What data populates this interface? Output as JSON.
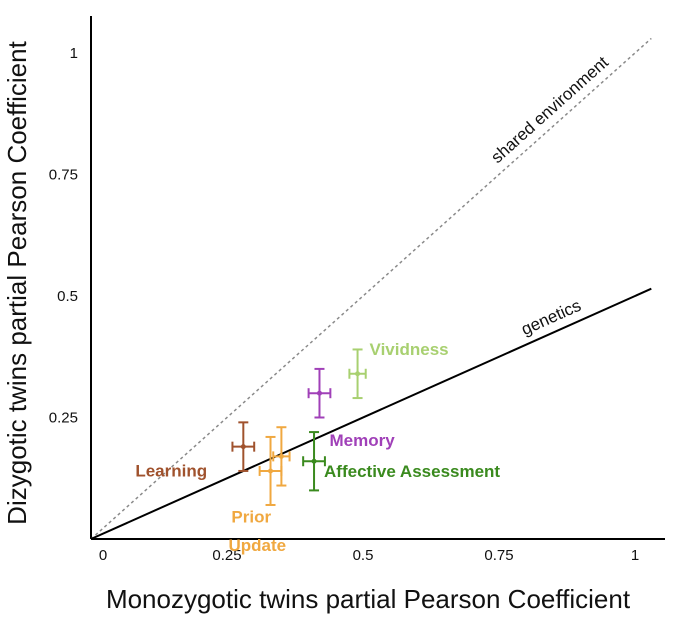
{
  "chart_data": {
    "type": "scatter",
    "xlabel": "Monozygotic twins partial Pearson Coefficient",
    "ylabel": "Dizygotic twins partial Pearson Coefficient",
    "xlim": [
      0,
      1.05
    ],
    "ylim": [
      0,
      1.1
    ],
    "x_ticks": [
      {
        "value": 0,
        "label": "0"
      },
      {
        "value": 0.25,
        "label": "0.25"
      },
      {
        "value": 0.5,
        "label": "0.5"
      },
      {
        "value": 0.75,
        "label": "0.75"
      },
      {
        "value": 1,
        "label": "1"
      }
    ],
    "y_ticks": [
      {
        "value": 0.25,
        "label": "0.25"
      },
      {
        "value": 0.5,
        "label": "0.5"
      },
      {
        "value": 0.75,
        "label": "0.75"
      },
      {
        "value": 1,
        "label": "1"
      }
    ],
    "reference_lines": [
      {
        "label": "shared environment",
        "style": "dotted",
        "color": "#8a8a8a",
        "slope": 1,
        "x_range": [
          0,
          1.03
        ]
      },
      {
        "label": "genetics",
        "style": "solid",
        "color": "#000000",
        "slope": 0.5,
        "x_range": [
          0,
          1.03
        ]
      }
    ],
    "points": [
      {
        "label": "Learning",
        "color": "#a0522d",
        "x": 0.28,
        "y": 0.19,
        "xerr": 0.02,
        "yerr": 0.05
      },
      {
        "label": "Update",
        "color": "#f0a840",
        "x": 0.33,
        "y": 0.14,
        "xerr": 0.02,
        "yerr": 0.07
      },
      {
        "label": "Prior",
        "color": "#f0a840",
        "x": 0.35,
        "y": 0.17,
        "xerr": 0.015,
        "yerr": 0.06
      },
      {
        "label": "Affective Assessment",
        "color": "#3a8a1e",
        "x": 0.41,
        "y": 0.16,
        "xerr": 0.02,
        "yerr": 0.06
      },
      {
        "label": "Memory",
        "color": "#a040b8",
        "x": 0.42,
        "y": 0.3,
        "xerr": 0.02,
        "yerr": 0.05
      },
      {
        "label": "Vividness",
        "color": "#a8d070",
        "x": 0.49,
        "y": 0.34,
        "xerr": 0.015,
        "yerr": 0.05
      }
    ]
  }
}
